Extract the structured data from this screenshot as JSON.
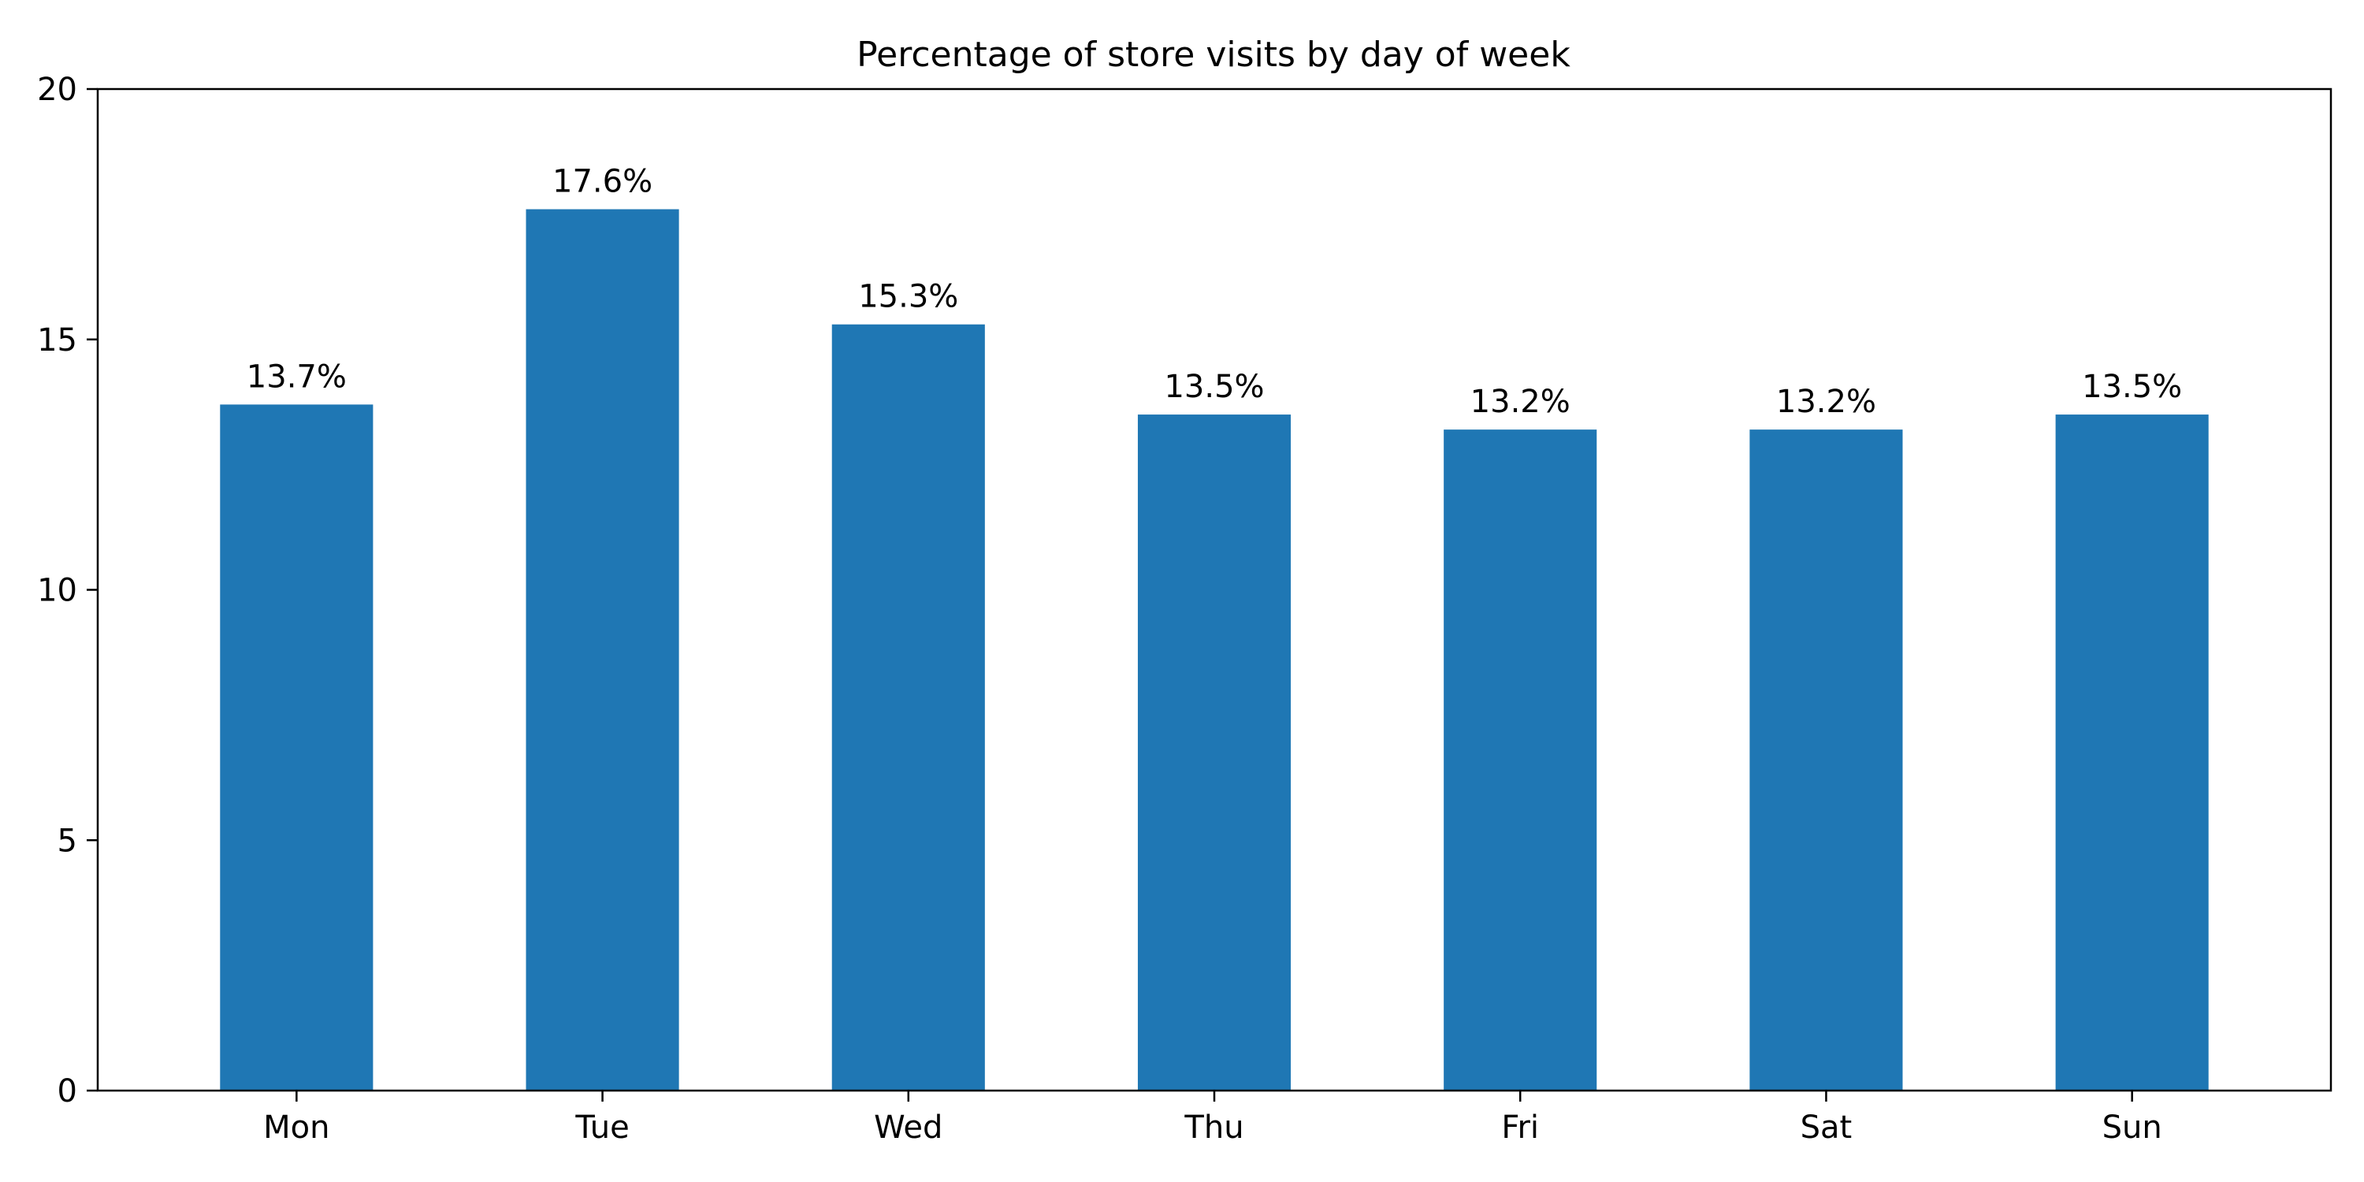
{
  "chart_data": {
    "type": "bar",
    "title": "Percentage of store visits by day of week",
    "xlabel": "",
    "ylabel": "",
    "categories": [
      "Mon",
      "Tue",
      "Wed",
      "Thu",
      "Fri",
      "Sat",
      "Sun"
    ],
    "values": [
      13.7,
      17.6,
      15.3,
      13.5,
      13.2,
      13.2,
      13.5
    ],
    "value_labels": [
      "13.7%",
      "17.6%",
      "15.3%",
      "13.5%",
      "13.2%",
      "13.2%",
      "13.5%"
    ],
    "ylim": [
      0,
      20
    ],
    "yticks": [
      0,
      5,
      10,
      15,
      20
    ],
    "bar_color": "#1f77b4",
    "grid": false,
    "legend": "none"
  }
}
